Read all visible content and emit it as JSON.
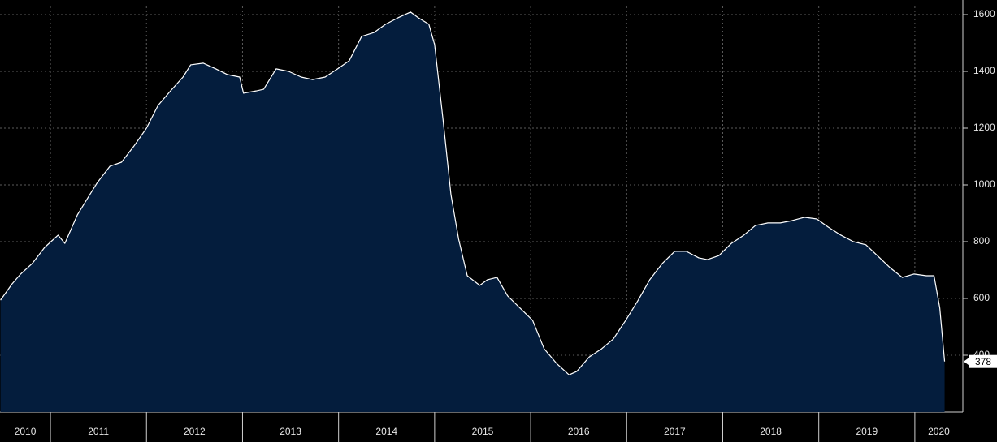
{
  "chart_data": {
    "type": "area",
    "series": [
      {
        "color": "#ffffff",
        "fill": "#041d3d",
        "x": [
          2010.48,
          2010.6,
          2010.69,
          2010.81,
          2010.94,
          2011.08,
          2011.15,
          2011.28,
          2011.41,
          2011.49,
          2011.62,
          2011.74,
          2011.87,
          2012.0,
          2012.12,
          2012.25,
          2012.38,
          2012.46,
          2012.59,
          2012.72,
          2012.84,
          2012.97,
          2013.01,
          2013.14,
          2013.22,
          2013.35,
          2013.48,
          2013.61,
          2013.73,
          2013.86,
          2013.99,
          2014.11,
          2014.24,
          2014.37,
          2014.49,
          2014.62,
          2014.75,
          2014.83,
          2014.94,
          2015.0,
          2015.09,
          2015.17,
          2015.25,
          2015.34,
          2015.47,
          2015.55,
          2015.65,
          2015.76,
          2015.89,
          2016.02,
          2016.14,
          2016.27,
          2016.4,
          2016.48,
          2016.61,
          2016.74,
          2016.86,
          2016.99,
          2017.12,
          2017.24,
          2017.37,
          2017.5,
          2017.62,
          2017.75,
          2017.84,
          2017.96,
          2018.09,
          2018.22,
          2018.34,
          2018.47,
          2018.6,
          2018.72,
          2018.85,
          2018.98,
          2019.1,
          2019.23,
          2019.36,
          2019.49,
          2019.61,
          2019.74,
          2019.87,
          2019.99,
          2020.12,
          2020.2,
          2020.26,
          2020.31
        ],
        "values": [
          594,
          651,
          686,
          723,
          780,
          823,
          794,
          894,
          966,
          1009,
          1066,
          1080,
          1137,
          1200,
          1280,
          1331,
          1380,
          1423,
          1429,
          1409,
          1389,
          1380,
          1323,
          1331,
          1337,
          1409,
          1400,
          1380,
          1371,
          1380,
          1409,
          1437,
          1523,
          1537,
          1566,
          1589,
          1609,
          1589,
          1566,
          1494,
          1223,
          966,
          809,
          680,
          646,
          666,
          674,
          609,
          566,
          523,
          423,
          371,
          331,
          343,
          394,
          423,
          457,
          523,
          594,
          666,
          723,
          766,
          766,
          743,
          737,
          751,
          794,
          823,
          857,
          866,
          866,
          874,
          886,
          880,
          851,
          823,
          800,
          789,
          751,
          709,
          674,
          686,
          680,
          680,
          566,
          378
        ]
      }
    ],
    "xlim": [
      2010.475,
      2020.5
    ],
    "xticks": [
      2011,
      2012,
      2013,
      2014,
      2015,
      2016,
      2017,
      2018,
      2019,
      2020
    ],
    "year_labels": [
      "2010",
      "2011",
      "2012",
      "2013",
      "2014",
      "2015",
      "2016",
      "2017",
      "2018",
      "2019",
      "2020"
    ],
    "ylim": [
      200,
      1600
    ],
    "yticks": [
      400,
      600,
      800,
      1000,
      1200,
      1400,
      1600
    ],
    "grid": true
  }
}
